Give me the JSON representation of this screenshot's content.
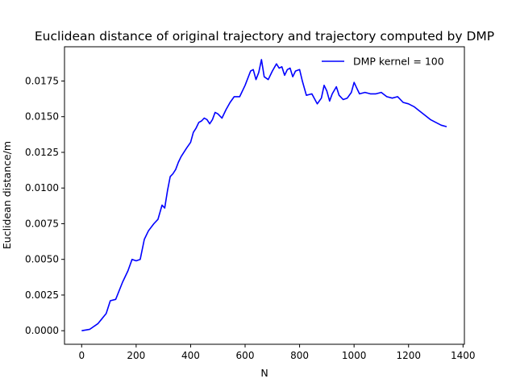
{
  "chart_data": {
    "type": "line",
    "title": "Euclidean distance of original trajectory and trajectory computed by DMP",
    "xlabel": "N",
    "ylabel": "Euclidean distance/m",
    "xlim": [
      -63,
      1405
    ],
    "ylim": [
      -0.00095,
      0.0199
    ],
    "xticks": [
      0,
      200,
      400,
      600,
      800,
      1000,
      1200,
      1400
    ],
    "xtick_labels": [
      "0",
      "200",
      "400",
      "600",
      "800",
      "1000",
      "1200",
      "1400"
    ],
    "yticks": [
      0.0,
      0.0025,
      0.005,
      0.0075,
      0.01,
      0.0125,
      0.015,
      0.0175
    ],
    "ytick_labels": [
      "0.0000",
      "0.0025",
      "0.0050",
      "0.0075",
      "0.0100",
      "0.0125",
      "0.0150",
      "0.0175"
    ],
    "grid": false,
    "legend_position": "top-right",
    "series": [
      {
        "name": "DMP kernel = 100",
        "color": "#0000ff",
        "x": [
          0,
          30,
          60,
          90,
          105,
          125,
          150,
          170,
          185,
          200,
          215,
          230,
          245,
          265,
          280,
          295,
          305,
          315,
          325,
          335,
          345,
          355,
          365,
          385,
          400,
          410,
          420,
          430,
          440,
          450,
          460,
          470,
          480,
          490,
          500,
          515,
          530,
          545,
          560,
          580,
          600,
          620,
          630,
          640,
          650,
          660,
          670,
          685,
          700,
          715,
          725,
          735,
          745,
          755,
          765,
          775,
          785,
          800,
          810,
          825,
          845,
          865,
          880,
          890,
          900,
          910,
          920,
          935,
          945,
          960,
          975,
          990,
          1000,
          1010,
          1020,
          1040,
          1060,
          1080,
          1100,
          1120,
          1140,
          1160,
          1180,
          1200,
          1220,
          1240,
          1260,
          1280,
          1300,
          1320,
          1340
        ],
        "y": [
          0.0,
          0.0001,
          0.0005,
          0.0012,
          0.0021,
          0.0022,
          0.0034,
          0.0042,
          0.005,
          0.0049,
          0.005,
          0.0064,
          0.007,
          0.0075,
          0.0078,
          0.0088,
          0.0086,
          0.0098,
          0.0108,
          0.011,
          0.0113,
          0.0118,
          0.0122,
          0.0128,
          0.0132,
          0.0139,
          0.0142,
          0.0146,
          0.0147,
          0.0149,
          0.0148,
          0.0145,
          0.0148,
          0.0153,
          0.0152,
          0.0149,
          0.0155,
          0.016,
          0.0164,
          0.0164,
          0.0172,
          0.0182,
          0.0183,
          0.0176,
          0.0181,
          0.019,
          0.0178,
          0.0176,
          0.0182,
          0.0187,
          0.0184,
          0.0185,
          0.0179,
          0.0183,
          0.0184,
          0.0178,
          0.0182,
          0.0183,
          0.0175,
          0.0165,
          0.0166,
          0.0159,
          0.0163,
          0.0172,
          0.0168,
          0.0161,
          0.0166,
          0.0171,
          0.0165,
          0.0162,
          0.0163,
          0.0167,
          0.0174,
          0.017,
          0.0166,
          0.0167,
          0.0166,
          0.0166,
          0.0167,
          0.0164,
          0.0163,
          0.0164,
          0.016,
          0.0159,
          0.0157,
          0.0154,
          0.0151,
          0.0148,
          0.0146,
          0.0144,
          0.0143
        ]
      }
    ]
  }
}
